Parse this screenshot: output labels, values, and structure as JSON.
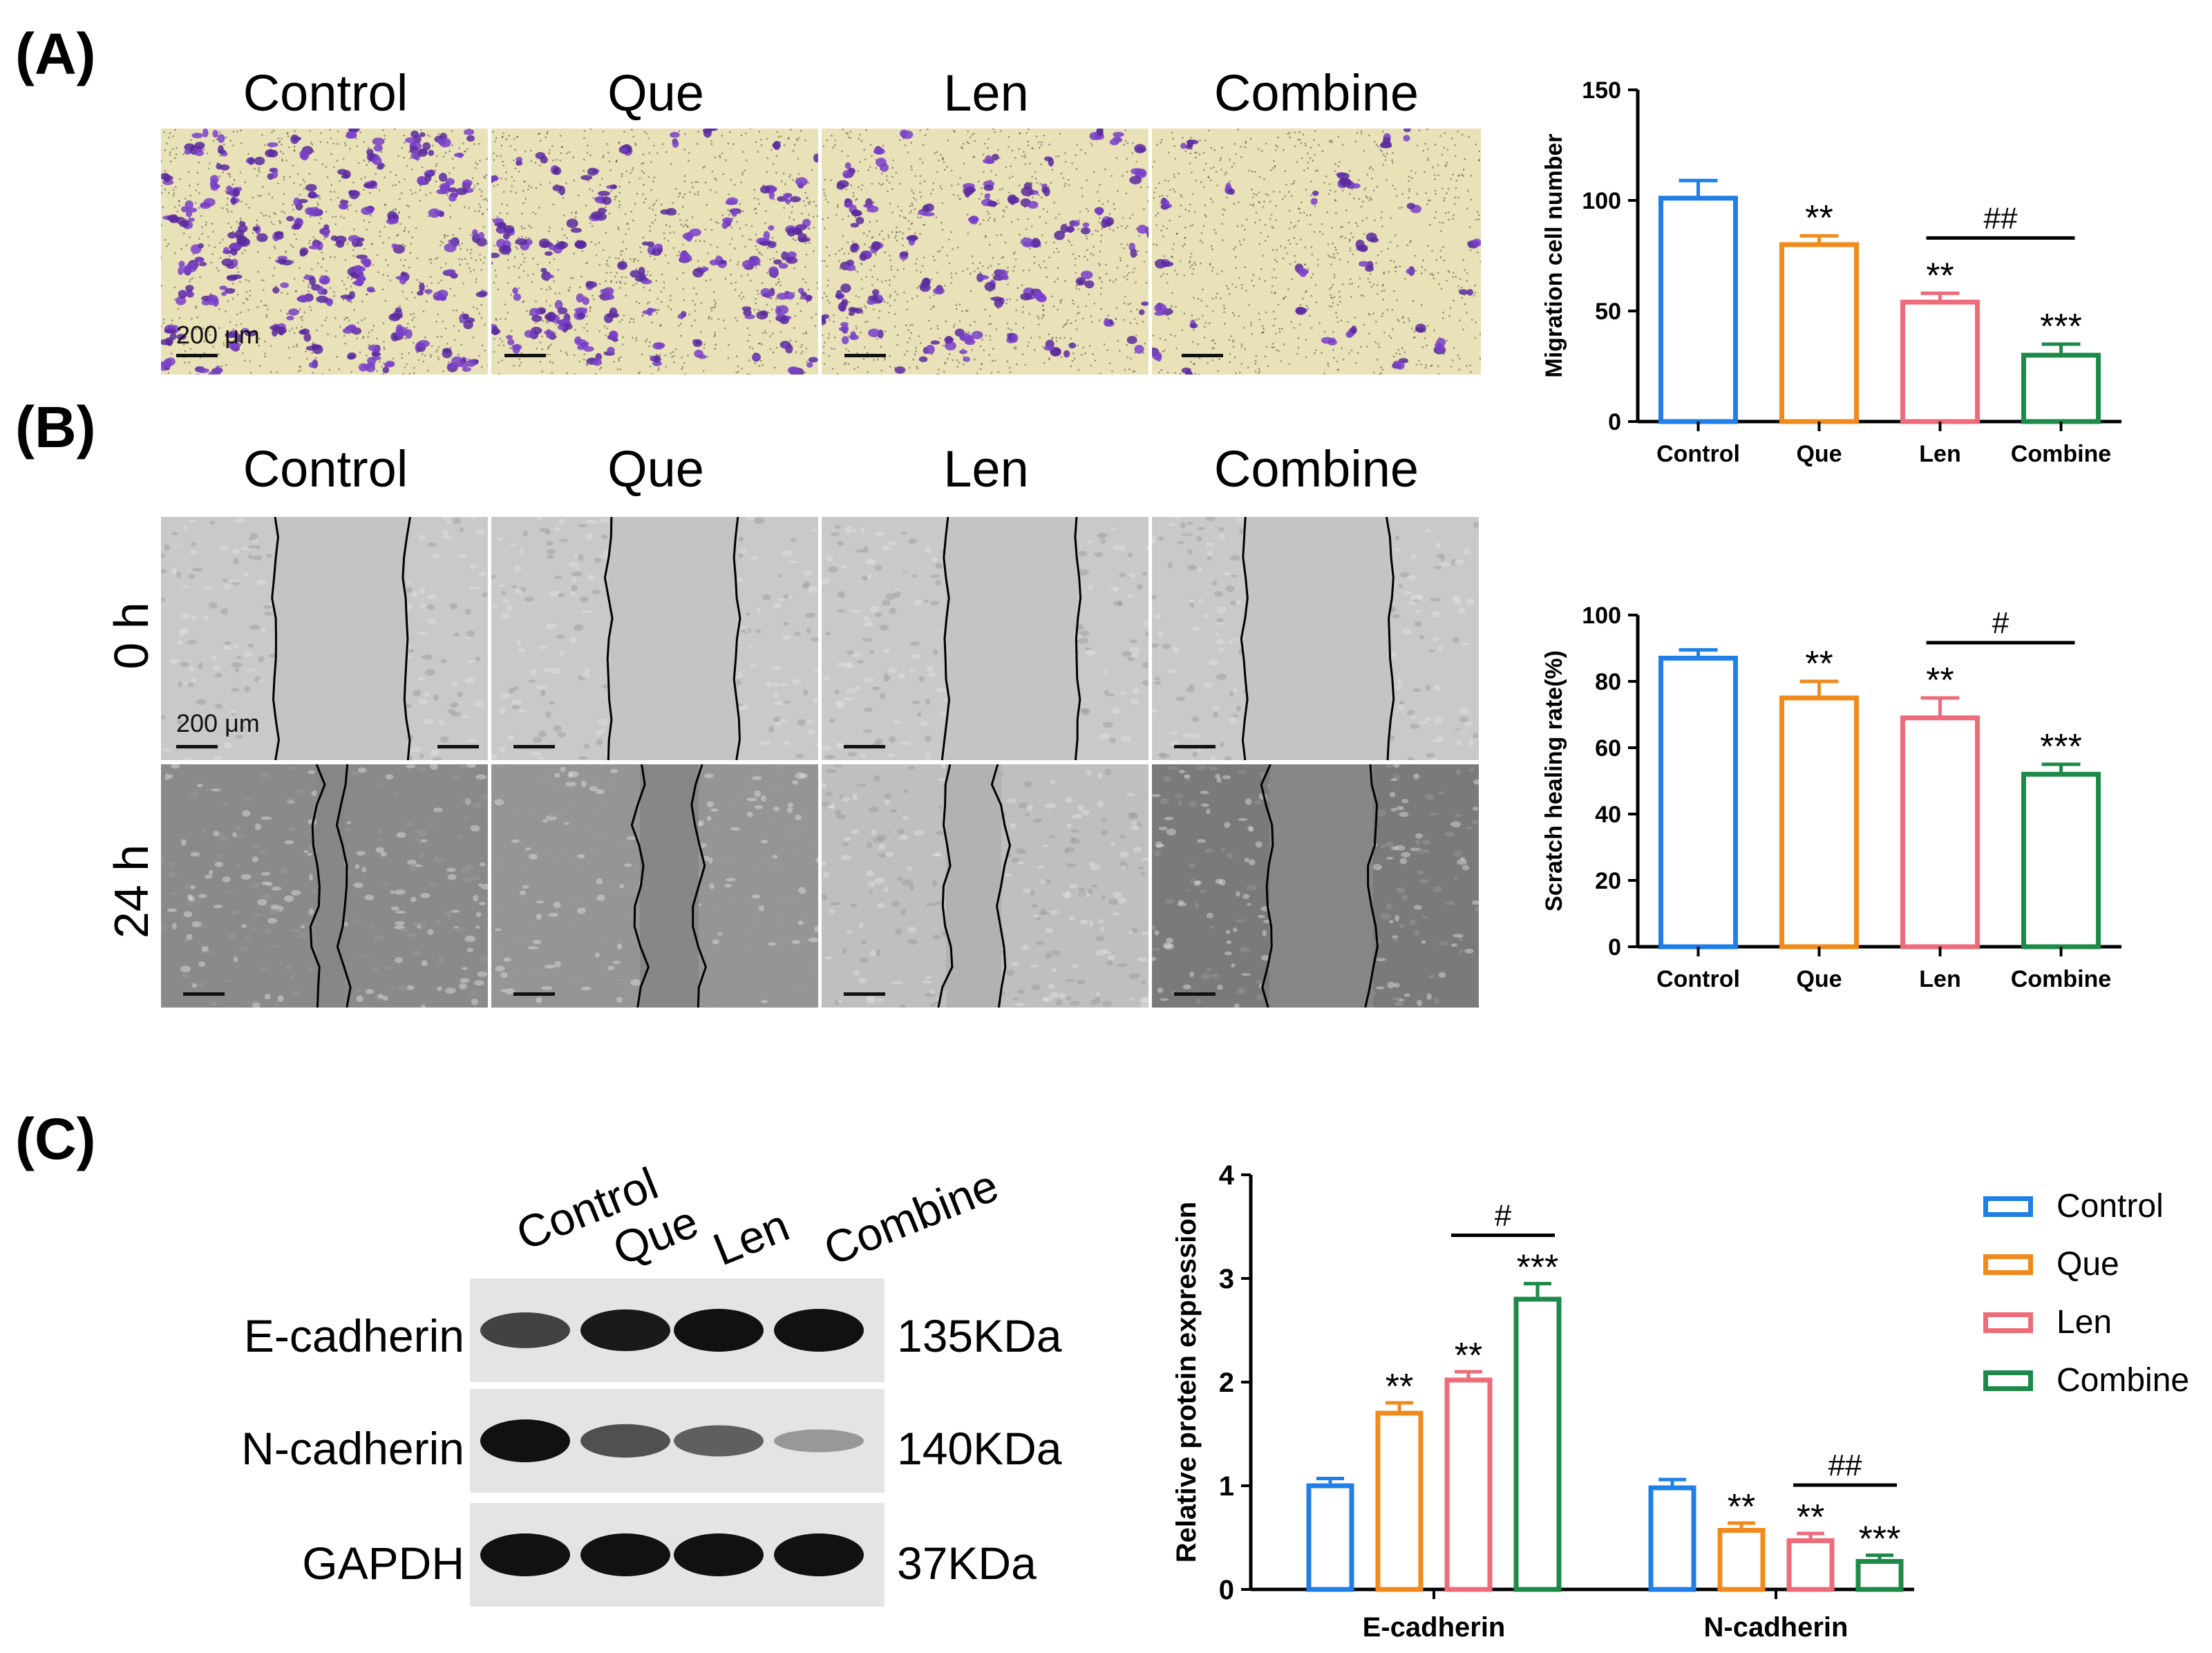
{
  "panels": {
    "A": {
      "label": "(A)",
      "column_titles": [
        "Control",
        "Que",
        "Len",
        "Combine"
      ],
      "scale_text": "200 μm"
    },
    "B": {
      "label": "(B)",
      "column_titles": [
        "Control",
        "Que",
        "Len",
        "Combine"
      ],
      "row_labels": [
        "0 h",
        "24 h"
      ],
      "scale_text": "200 μm"
    },
    "C": {
      "label": "(C)",
      "lane_labels": [
        "Control",
        "Que",
        "Len",
        "Combine"
      ],
      "blot_rows": [
        {
          "protein": "E-cadherin",
          "mw": "135KDa",
          "intensities": [
            0.7,
            0.95,
            1.0,
            1.0
          ]
        },
        {
          "protein": "N-cadherin",
          "mw": "140KDa",
          "intensities": [
            1.0,
            0.6,
            0.5,
            0.15
          ]
        },
        {
          "protein": "GAPDH",
          "mw": "37KDa",
          "intensities": [
            1.0,
            1.0,
            1.0,
            1.0
          ]
        }
      ]
    }
  },
  "colors": {
    "Control": "#1f7fe6",
    "Que": "#f08a1c",
    "Len": "#ee6b7a",
    "Combine": "#1e8a4a"
  },
  "legend": [
    "Control",
    "Que",
    "Len",
    "Combine"
  ],
  "chart_data": [
    {
      "type": "bar",
      "categories": [
        "Control",
        "Que",
        "Len",
        "Combine"
      ],
      "values": [
        101,
        80,
        54,
        30
      ],
      "errors": [
        8,
        4,
        4,
        5
      ],
      "ylabel": "Migration cell number",
      "ylim": [
        0,
        150
      ],
      "yticks": [
        0,
        50,
        100,
        150
      ],
      "significance": [
        "",
        "**",
        "**",
        "***"
      ],
      "bracket": {
        "from": "Len",
        "to": "Combine",
        "label": "##"
      }
    },
    {
      "type": "bar",
      "categories": [
        "Control",
        "Que",
        "Len",
        "Combine"
      ],
      "values": [
        87,
        75,
        69,
        52
      ],
      "errors": [
        2.5,
        5,
        6,
        3
      ],
      "ylabel": "Scratch healing rate(%)",
      "ylim": [
        0,
        100
      ],
      "yticks": [
        0,
        20,
        40,
        60,
        80,
        100
      ],
      "significance": [
        "",
        "**",
        "**",
        "***"
      ],
      "bracket": {
        "from": "Len",
        "to": "Combine",
        "label": "#"
      }
    },
    {
      "type": "bar",
      "categories": [
        "E-cadherin",
        "N-cadherin"
      ],
      "series": [
        {
          "name": "Control",
          "values": [
            1.0,
            0.98
          ],
          "errors": [
            0.07,
            0.08
          ],
          "significance": [
            "",
            ""
          ]
        },
        {
          "name": "Que",
          "values": [
            1.7,
            0.57
          ],
          "errors": [
            0.1,
            0.07
          ],
          "significance": [
            "**",
            "**"
          ]
        },
        {
          "name": "Len",
          "values": [
            2.02,
            0.47
          ],
          "errors": [
            0.08,
            0.07
          ],
          "significance": [
            "**",
            "**"
          ]
        },
        {
          "name": "Combine",
          "values": [
            2.8,
            0.27
          ],
          "errors": [
            0.15,
            0.06
          ],
          "significance": [
            "***",
            "***"
          ]
        }
      ],
      "ylabel": "Relative protein expression",
      "ylim": [
        0,
        4
      ],
      "yticks": [
        0,
        1,
        2,
        3,
        4
      ],
      "brackets": [
        {
          "category": "E-cadherin",
          "from": "Len",
          "to": "Combine",
          "label": "#"
        },
        {
          "category": "N-cadherin",
          "from": "Len",
          "to": "Combine",
          "label": "##"
        }
      ]
    }
  ]
}
